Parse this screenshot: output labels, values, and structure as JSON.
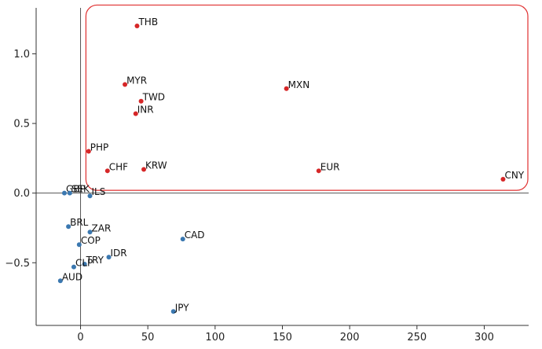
{
  "chart_data": {
    "type": "scatter",
    "xlim": [
      -33,
      333
    ],
    "ylim": [
      -0.95,
      1.33
    ],
    "x_ticks": [
      0,
      50,
      100,
      150,
      200,
      250,
      300
    ],
    "y_ticks": [
      -0.5,
      0.0,
      0.5,
      1.0
    ],
    "x_tick_labels": [
      "0",
      "50",
      "100",
      "150",
      "200",
      "250",
      "300"
    ],
    "y_tick_labels": [
      "−0.5",
      "0.0",
      "0.5",
      "1.0"
    ],
    "reference_lines": {
      "x": 0,
      "y": 0
    },
    "grid": false,
    "highlight_box": {
      "x0": 4,
      "x1": 333,
      "y0": 0.02,
      "y1": 1.35,
      "color": "#e03030"
    },
    "colors": {
      "highlighted": "#d62728",
      "other": "#3b78b0",
      "axis": "#555555"
    },
    "points": [
      {
        "label": "THB",
        "x": 42,
        "y": 1.2,
        "group": "highlighted"
      },
      {
        "label": "MYR",
        "x": 33,
        "y": 0.78,
        "group": "highlighted"
      },
      {
        "label": "MXN",
        "x": 153,
        "y": 0.75,
        "group": "highlighted"
      },
      {
        "label": "TWD",
        "x": 45,
        "y": 0.66,
        "group": "highlighted"
      },
      {
        "label": "INR",
        "x": 41,
        "y": 0.57,
        "group": "highlighted"
      },
      {
        "label": "PHP",
        "x": 6,
        "y": 0.3,
        "group": "highlighted"
      },
      {
        "label": "CHF",
        "x": 20,
        "y": 0.16,
        "group": "highlighted"
      },
      {
        "label": "KRW",
        "x": 47,
        "y": 0.17,
        "group": "highlighted"
      },
      {
        "label": "EUR",
        "x": 177,
        "y": 0.16,
        "group": "highlighted"
      },
      {
        "label": "CNY",
        "x": 314,
        "y": 0.1,
        "group": "highlighted"
      },
      {
        "label": "GBP",
        "x": -12,
        "y": 0.0,
        "group": "other"
      },
      {
        "label": "SEK",
        "x": -8,
        "y": 0.0,
        "group": "other"
      },
      {
        "label": "ILS",
        "x": 7,
        "y": -0.02,
        "group": "other"
      },
      {
        "label": "BRL",
        "x": -9,
        "y": -0.24,
        "group": "other"
      },
      {
        "label": "ZAR",
        "x": 7,
        "y": -0.28,
        "group": "other"
      },
      {
        "label": "CAD",
        "x": 76,
        "y": -0.33,
        "group": "other"
      },
      {
        "label": "COP",
        "x": -1,
        "y": -0.37,
        "group": "other"
      },
      {
        "label": "IDR",
        "x": 21,
        "y": -0.46,
        "group": "other"
      },
      {
        "label": "TRY",
        "x": 3,
        "y": -0.51,
        "group": "other"
      },
      {
        "label": "CLP",
        "x": -5,
        "y": -0.53,
        "group": "other"
      },
      {
        "label": "AUD",
        "x": -15,
        "y": -0.63,
        "group": "other"
      },
      {
        "label": "JPY",
        "x": 69,
        "y": -0.85,
        "group": "other"
      }
    ]
  }
}
